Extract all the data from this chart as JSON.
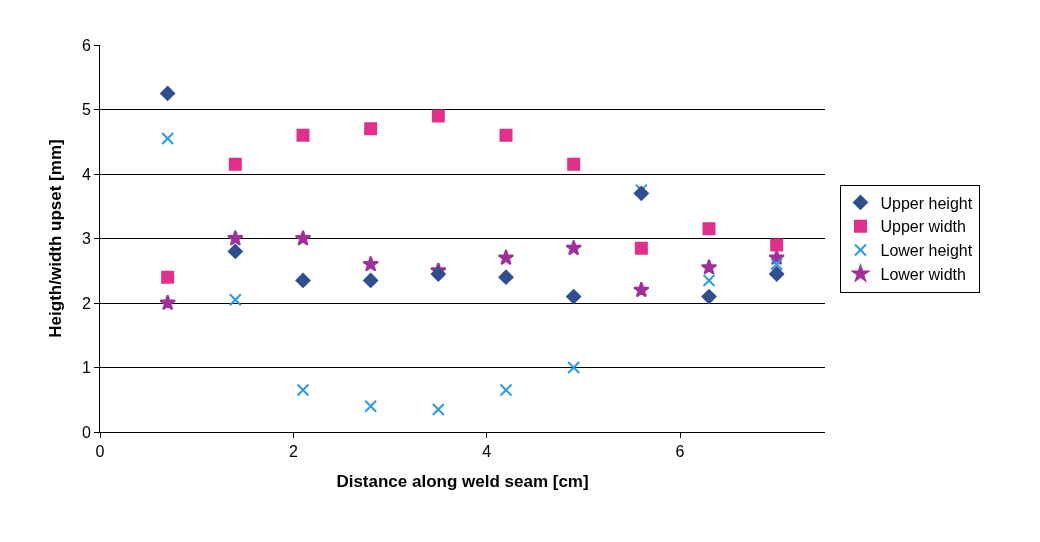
{
  "chart_data": {
    "type": "scatter",
    "xlabel": "Distance along weld seam [cm]",
    "ylabel": "Heigth/width upset [mm]",
    "x": [
      0.7,
      1.4,
      2.1,
      2.8,
      3.5,
      4.2,
      4.9,
      5.6,
      6.3,
      7.0
    ],
    "series": [
      {
        "name": "Upper height",
        "color": "#2f4f8f",
        "marker": "diamond",
        "values": [
          5.25,
          2.8,
          2.35,
          2.35,
          2.45,
          2.4,
          2.1,
          3.7,
          2.1,
          2.45
        ]
      },
      {
        "name": "Upper width",
        "color": "#e0308a",
        "marker": "square",
        "values": [
          2.4,
          4.15,
          4.6,
          4.7,
          4.9,
          4.6,
          4.15,
          2.85,
          3.15,
          2.9
        ]
      },
      {
        "name": "Lower height",
        "color": "#2a9be0",
        "marker": "cross",
        "values": [
          4.55,
          2.05,
          0.65,
          0.4,
          0.35,
          0.65,
          1.0,
          3.75,
          2.35,
          2.6
        ]
      },
      {
        "name": "Lower width",
        "color": "#a0309a",
        "marker": "star",
        "values": [
          2.0,
          3.0,
          3.0,
          2.6,
          2.5,
          2.7,
          2.85,
          2.2,
          2.55,
          2.7
        ]
      }
    ],
    "xlim": [
      0,
      7.5
    ],
    "xticks": [
      0,
      2,
      4,
      6
    ],
    "ylim": [
      0,
      6
    ],
    "yticks": [
      0,
      1,
      2,
      3,
      4,
      5,
      6
    ],
    "grid": "y",
    "legend": "right"
  }
}
